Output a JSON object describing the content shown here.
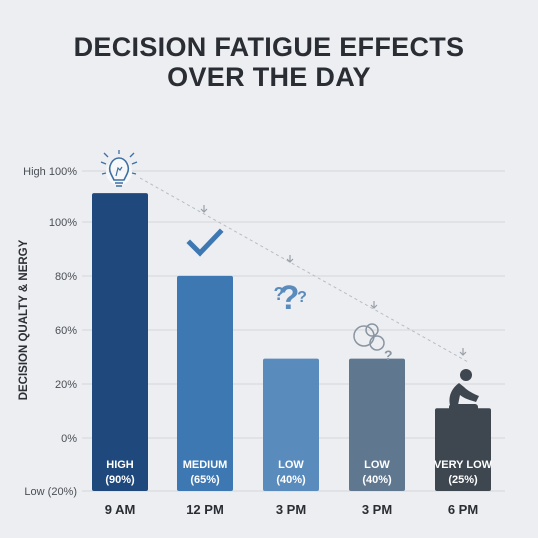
{
  "chart_data": {
    "type": "bar",
    "title_lines": [
      "DECISION FATIGUE EFFECTS",
      "OVER THE DAY"
    ],
    "ylabel": "DECISION QUALTY & NERGY",
    "y_tick_labels": [
      "High 100%",
      "100%",
      "80%",
      "60%",
      "20%",
      "0%",
      "Low (20%)"
    ],
    "categories": [
      "9 AM",
      "12 PM",
      "3 PM",
      "3 PM",
      "6 PM"
    ],
    "values": [
      90,
      65,
      40,
      40,
      25
    ],
    "bar_labels": [
      {
        "level": "HIGH",
        "pct": "(90%)"
      },
      {
        "level": "MEDIUM",
        "pct": "(65%)"
      },
      {
        "level": "LOW",
        "pct": "(40%)"
      },
      {
        "level": "LOW",
        "pct": "(40%)"
      },
      {
        "level": "VERY LOW",
        "pct": "(25%)"
      }
    ],
    "icons": [
      "lightbulb-icon",
      "checkmark-icon",
      "question-marks-icon",
      "thought-bubble-icon",
      "tired-person-icon"
    ],
    "colors": [
      "#1f497d",
      "#3e78b2",
      "#5a8bbd",
      "#5f7890",
      "#3e4750"
    ],
    "grid": true,
    "trend_line": true
  }
}
